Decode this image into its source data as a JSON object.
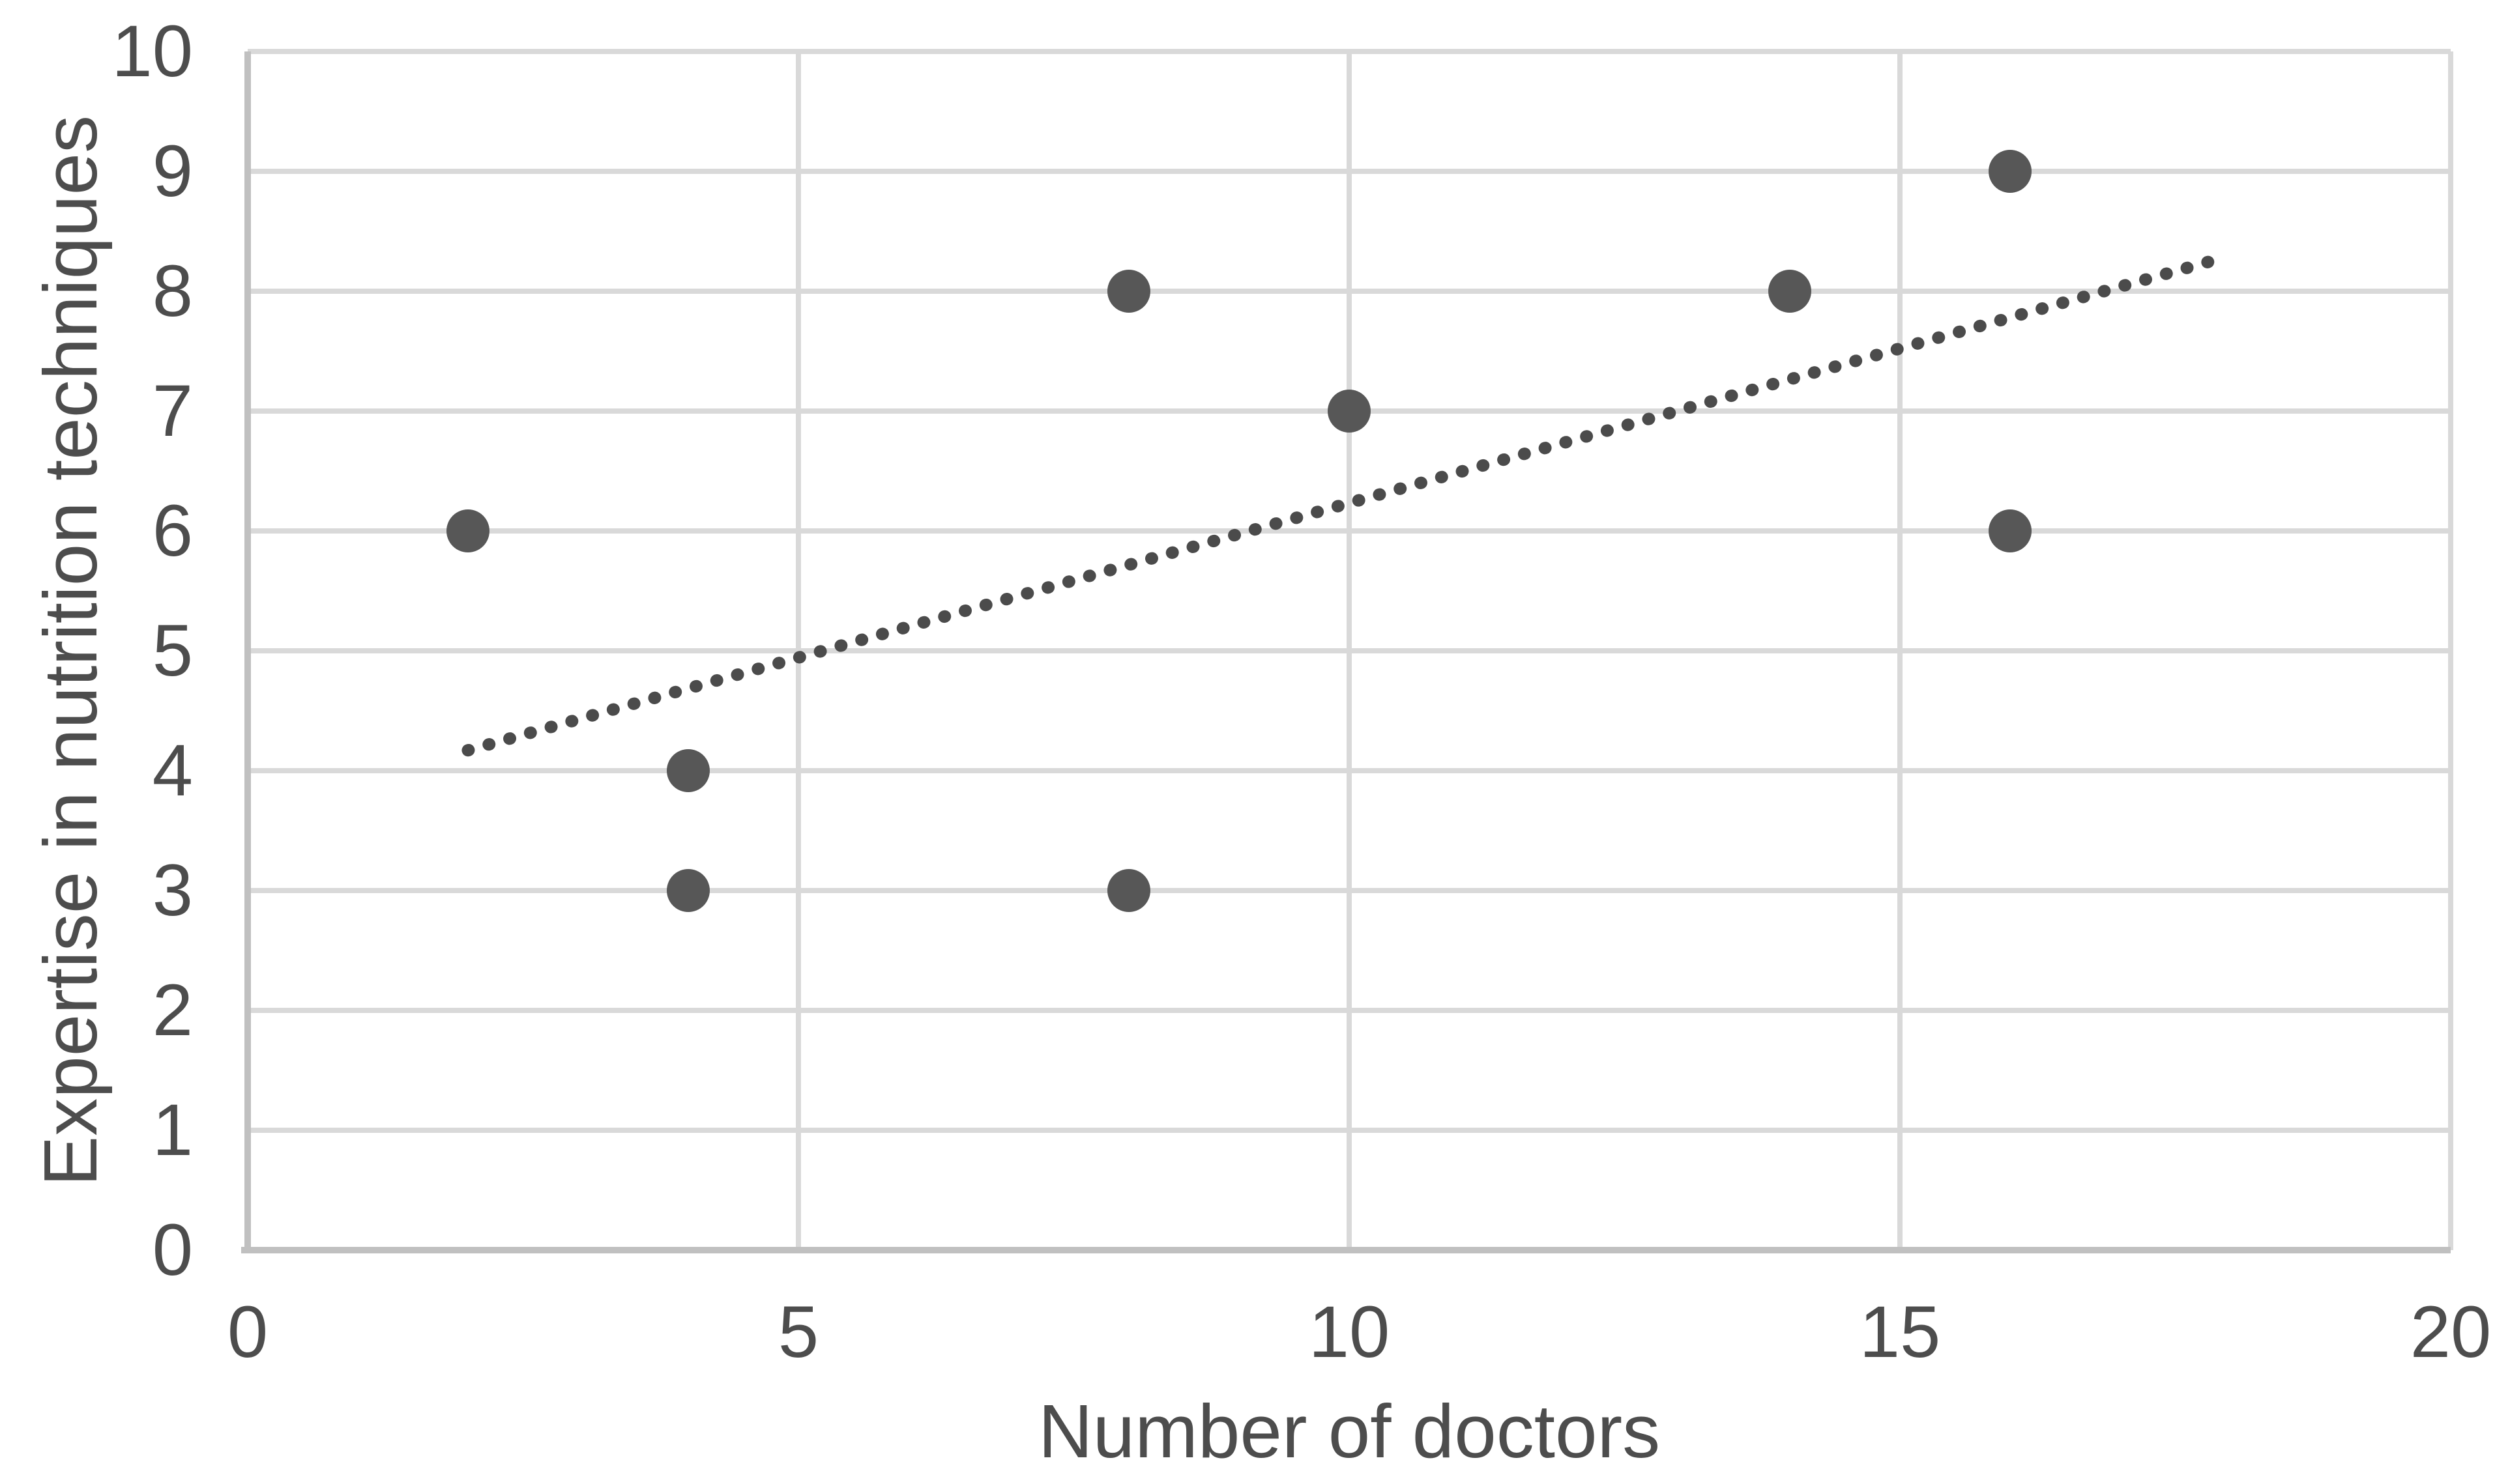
{
  "chart_data": {
    "type": "scatter",
    "title": "",
    "xlabel": "Number of doctors",
    "ylabel": "Expertise in nutrition techniques",
    "xlim": [
      0,
      20
    ],
    "ylim": [
      0,
      10
    ],
    "x_ticks": [
      0,
      5,
      10,
      15,
      20
    ],
    "y_ticks": [
      0,
      1,
      2,
      3,
      4,
      5,
      6,
      7,
      8,
      9,
      10
    ],
    "grid": true,
    "legend": "none",
    "points": [
      {
        "x": 2,
        "y": 6
      },
      {
        "x": 4,
        "y": 4
      },
      {
        "x": 4,
        "y": 3
      },
      {
        "x": 8,
        "y": 8
      },
      {
        "x": 8,
        "y": 3
      },
      {
        "x": 10,
        "y": 7
      },
      {
        "x": 14,
        "y": 8
      },
      {
        "x": 16,
        "y": 9
      },
      {
        "x": 16,
        "y": 6
      }
    ],
    "trendline": {
      "style": "dotted",
      "x1": 2.0,
      "y1": 4.17,
      "x2": 17.9,
      "y2": 8.27
    },
    "colors": {
      "point": "#575757",
      "trendline": "#4b4b4b",
      "gridline": "#d9d9d9",
      "axis_line": "#c0c0c0",
      "text": "#4d4d4d",
      "background": "#ffffff"
    }
  }
}
